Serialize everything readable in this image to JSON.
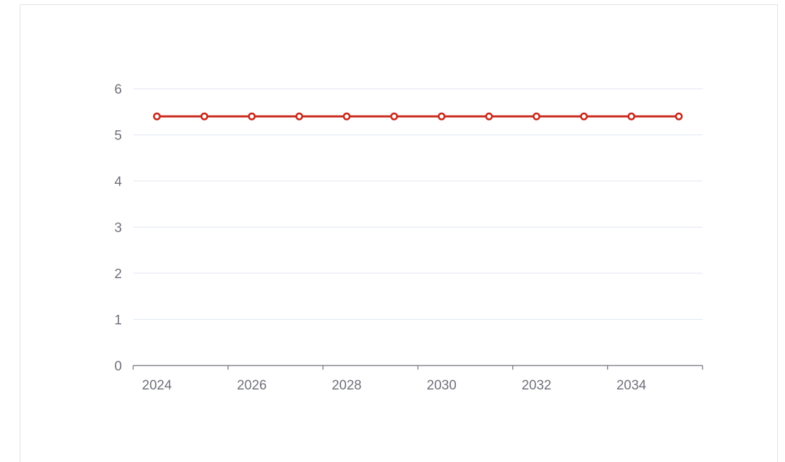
{
  "chart_data": {
    "type": "line",
    "categories": [
      "2024",
      "2025",
      "2026",
      "2027",
      "2028",
      "2029",
      "2030",
      "2031",
      "2032",
      "2033",
      "2034",
      "2035"
    ],
    "x_tick_labels": [
      "2024",
      "2026",
      "2028",
      "2030",
      "2032",
      "2034"
    ],
    "y_tick_labels": [
      "0",
      "1",
      "2",
      "3",
      "4",
      "5",
      "6"
    ],
    "series": [
      {
        "values": [
          5.4,
          5.4,
          5.4,
          5.4,
          5.4,
          5.4,
          5.4,
          5.4,
          5.4,
          5.4,
          5.4,
          5.4
        ]
      }
    ],
    "ylim": [
      0,
      6
    ],
    "grid": true,
    "colors": {
      "line": "#c9281b",
      "grid": "#e0e6f1",
      "axis": "#6e7079",
      "text": "#6e7079"
    }
  }
}
